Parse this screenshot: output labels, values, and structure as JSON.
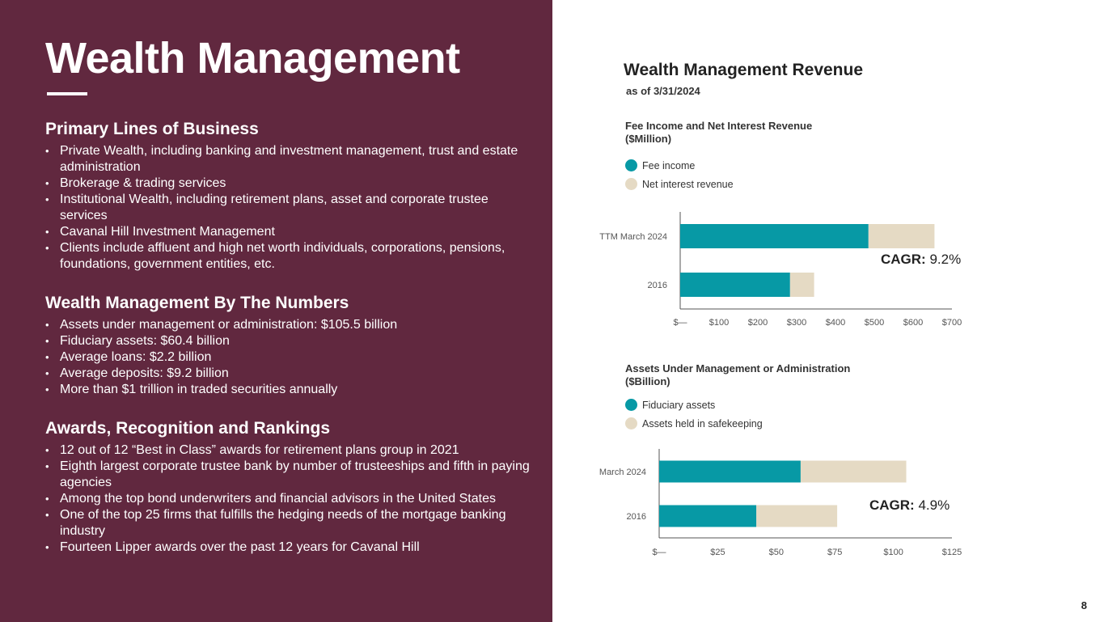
{
  "left": {
    "title": "Wealth Management",
    "sections": [
      {
        "heading": "Primary Lines of Business",
        "bullets": [
          "Private Wealth, including banking and investment management, trust and estate administration",
          "Brokerage & trading services",
          "Institutional Wealth, including retirement plans, asset and corporate trustee services",
          "Cavanal Hill Investment Management",
          "Clients include affluent and high net worth individuals, corporations, pensions, foundations, government entities, etc."
        ]
      },
      {
        "heading": "Wealth Management By The Numbers",
        "bullets": [
          "Assets under management or administration: $105.5 billion",
          "Fiduciary assets: $60.4 billion",
          "Average loans: $2.2 billion",
          "Average deposits: $9.2 billion",
          "More than $1 trillion in traded securities annually"
        ]
      },
      {
        "heading": "Awards, Recognition and Rankings",
        "bullets": [
          "12 out of 12 “Best in Class” awards for retirement plans group in 2021",
          "Eighth largest corporate trustee bank by number of trusteeships and fifth in paying agencies",
          "Among the top bond underwriters and financial advisors in the United States",
          "One of the top 25 firms that fulfills the hedging needs of the mortgage banking industry",
          "Fourteen Lipper awards over the past 12 years for Cavanal Hill"
        ]
      }
    ]
  },
  "right": {
    "title": "Wealth Management Revenue",
    "subtitle": "as of 3/31/2024",
    "page_number": "8"
  },
  "colors": {
    "panel": "#61283f",
    "teal": "#0799a5",
    "beige": "#e5dac4"
  },
  "chart_data": [
    {
      "type": "bar",
      "orientation": "horizontal",
      "stacked": true,
      "title_line1": "Fee Income  and Net Interest Revenue",
      "title_line2": "($Million)",
      "categories": [
        "TTM March 2024",
        "2016"
      ],
      "series": [
        {
          "name": "Fee income",
          "color": "#0799a5",
          "values": [
            485,
            283
          ]
        },
        {
          "name": "Net interest revenue",
          "color": "#e5dac4",
          "values": [
            170,
            62
          ]
        }
      ],
      "xlim": [
        0,
        700
      ],
      "ticks": [
        0,
        100,
        200,
        300,
        400,
        500,
        600,
        700
      ],
      "tick_labels": [
        "$—",
        "$100",
        "$200",
        "$300",
        "$400",
        "$500",
        "$600",
        "$700"
      ],
      "cagr_label": "CAGR:",
      "cagr_value": "9.2%"
    },
    {
      "type": "bar",
      "orientation": "horizontal",
      "stacked": true,
      "title_line1": "Assets Under Management or Administration",
      "title_line2": "($Billion)",
      "categories": [
        "March 2024",
        "2016"
      ],
      "series": [
        {
          "name": "Fiduciary assets",
          "color": "#0799a5",
          "values": [
            60.4,
            41.5
          ]
        },
        {
          "name": "Assets held in safekeeping",
          "color": "#e5dac4",
          "values": [
            45.1,
            34.5
          ]
        }
      ],
      "xlim": [
        0,
        125
      ],
      "ticks": [
        0,
        25,
        50,
        75,
        100,
        125
      ],
      "tick_labels": [
        "$—",
        "$25",
        "$50",
        "$75",
        "$100",
        "$125"
      ],
      "cagr_label": "CAGR:",
      "cagr_value": "4.9%"
    }
  ]
}
